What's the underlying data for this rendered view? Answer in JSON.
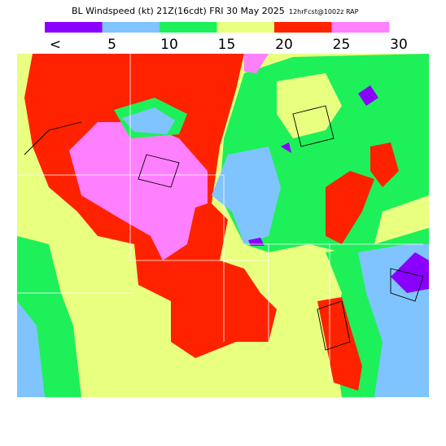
{
  "header": {
    "title": "BL Windspeed (kt) 21Z(16cdt) FRI 30 May 2025",
    "run": "12hrFcst@1002z RAP"
  },
  "legend": {
    "colors": [
      "#8a00ff",
      "#7fc4ff",
      "#1ef05a",
      "#e8ff80",
      "#ff2200",
      "#ff80ff"
    ],
    "labels": [
      "<",
      "5",
      "10",
      "15",
      "20",
      "25",
      "30"
    ]
  }
}
